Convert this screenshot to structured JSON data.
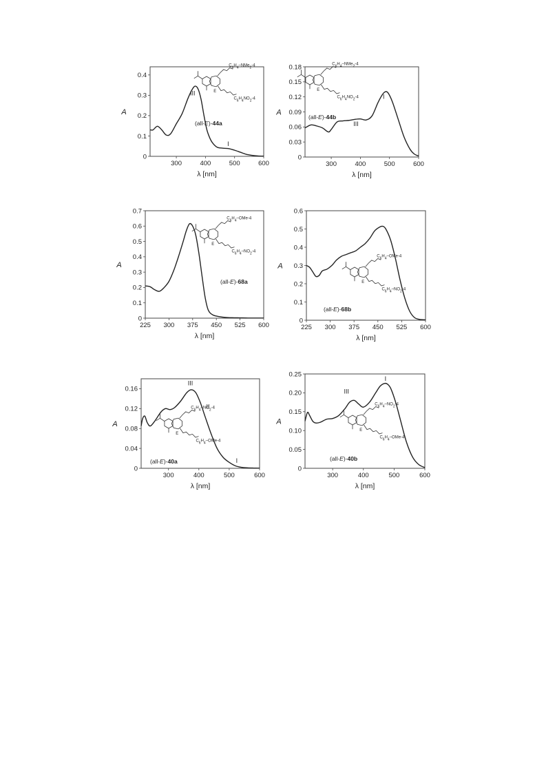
{
  "chart_data": [
    {
      "id": "44a",
      "type": "line",
      "xlabel": "λ [nm]",
      "ylabel": "A",
      "xlim": [
        210,
        600
      ],
      "ylim": [
        0,
        0.44
      ],
      "xticks": [
        300,
        400,
        500,
        600
      ],
      "xtick_labels": [
        "300",
        "400",
        "500",
        "600"
      ],
      "yticks": [
        0,
        0.1,
        0.2,
        0.3,
        0.4
      ],
      "ytick_labels": [
        "0",
        "0.1",
        "0.2",
        "0.3",
        "0.4"
      ],
      "caption_prefix": "(all-",
      "caption_italic": "E",
      "caption_mid": ")-",
      "caption_bold": "44a",
      "substituent_top": "C6H4–NMe2-4",
      "substituent_bottom": "C6H4NO2-4",
      "ring_label": "E",
      "annotations": [
        {
          "text": "III",
          "x": 356,
          "y": 0.3
        },
        {
          "text": "I",
          "x": 478,
          "y": 0.05
        }
      ],
      "series": [
        {
          "x": [
            210,
            220,
            235,
            250,
            265,
            280,
            300,
            320,
            340,
            355,
            365,
            375,
            385,
            395,
            405,
            415,
            425,
            440,
            460,
            480,
            500,
            520,
            540,
            560,
            580,
            600
          ],
          "y": [
            0.13,
            0.13,
            0.148,
            0.13,
            0.105,
            0.11,
            0.16,
            0.21,
            0.285,
            0.33,
            0.345,
            0.33,
            0.28,
            0.2,
            0.13,
            0.09,
            0.065,
            0.045,
            0.04,
            0.038,
            0.03,
            0.02,
            0.01,
            0.005,
            0.002,
            0.001
          ]
        }
      ]
    },
    {
      "id": "44b",
      "type": "line",
      "xlabel": "λ [nm]",
      "ylabel": "A",
      "xlim": [
        210,
        600
      ],
      "ylim": [
        0,
        0.18
      ],
      "xticks": [
        300,
        400,
        500,
        600
      ],
      "xtick_labels": [
        "300",
        "400",
        "500",
        "600"
      ],
      "yticks": [
        0,
        0.03,
        0.06,
        0.09,
        0.12,
        0.15,
        0.18
      ],
      "ytick_labels": [
        "0",
        "0.03",
        "0.06",
        "0.09",
        "0.12",
        "0.15",
        "0.18"
      ],
      "caption_prefix": "(all-",
      "caption_italic": "E",
      "caption_mid": ")-",
      "caption_bold": "44b",
      "substituent_top": "C6H4–NMe2-4",
      "substituent_bottom": "C6H4NO2-4",
      "ring_label": "E",
      "annotations": [
        {
          "text": "I",
          "x": 480,
          "y": 0.116
        },
        {
          "text": "III",
          "x": 385,
          "y": 0.062
        }
      ],
      "series": [
        {
          "x": [
            210,
            230,
            250,
            270,
            290,
            300,
            320,
            340,
            360,
            380,
            400,
            420,
            440,
            460,
            475,
            485,
            495,
            510,
            530,
            550,
            570,
            585,
            600
          ],
          "y": [
            0.058,
            0.064,
            0.062,
            0.058,
            0.05,
            0.055,
            0.07,
            0.072,
            0.073,
            0.075,
            0.076,
            0.074,
            0.082,
            0.108,
            0.124,
            0.13,
            0.128,
            0.11,
            0.075,
            0.04,
            0.016,
            0.006,
            0.002
          ]
        }
      ]
    },
    {
      "id": "68a",
      "type": "line",
      "xlabel": "λ [nm]",
      "ylabel": "A",
      "xlim": [
        225,
        600
      ],
      "ylim": [
        0,
        0.7
      ],
      "xticks": [
        225,
        300,
        375,
        450,
        525,
        600
      ],
      "xtick_labels": [
        "225",
        "300",
        "375",
        "450",
        "525",
        "600"
      ],
      "yticks": [
        0,
        0.1,
        0.2,
        0.3,
        0.4,
        0.5,
        0.6,
        0.7
      ],
      "ytick_labels": [
        "0",
        "0.1",
        "0.2",
        "0.3",
        "0.4",
        "0.5",
        "0.6",
        "0.7"
      ],
      "caption_prefix": "(all-",
      "caption_italic": "E",
      "caption_mid": ")-",
      "caption_bold": "68a",
      "substituent_top": "C6H4–OMe-4",
      "substituent_bottom": "C6H4–NO2-4",
      "ring_label": "E",
      "annotations": [],
      "series": [
        {
          "x": [
            225,
            240,
            255,
            270,
            285,
            300,
            315,
            330,
            345,
            355,
            365,
            375,
            385,
            395,
            405,
            415,
            425,
            440,
            460,
            480,
            500,
            525,
            550,
            575,
            600
          ],
          "y": [
            0.21,
            0.205,
            0.185,
            0.175,
            0.2,
            0.24,
            0.31,
            0.4,
            0.5,
            0.57,
            0.615,
            0.6,
            0.54,
            0.42,
            0.27,
            0.13,
            0.05,
            0.02,
            0.01,
            0.005,
            0.003,
            0.002,
            0.001,
            0.001,
            0.001
          ]
        }
      ]
    },
    {
      "id": "68b",
      "type": "line",
      "xlabel": "λ [nm]",
      "ylabel": "A",
      "xlim": [
        225,
        600
      ],
      "ylim": [
        0,
        0.6
      ],
      "xticks": [
        225,
        300,
        375,
        450,
        525,
        600
      ],
      "xtick_labels": [
        "225",
        "300",
        "375",
        "450",
        "525",
        "600"
      ],
      "yticks": [
        0,
        0.1,
        0.2,
        0.3,
        0.4,
        0.5,
        0.6
      ],
      "ytick_labels": [
        "0",
        "0.1",
        "0.2",
        "0.3",
        "0.4",
        "0.5",
        "0.6"
      ],
      "caption_prefix": "(all-",
      "caption_italic": "E",
      "caption_mid": ")-",
      "caption_bold": "68b",
      "substituent_top": "C6H4–OMe-4",
      "substituent_bottom": "C6H4–NO2-4",
      "ring_label": "E",
      "annotations": [],
      "series": [
        {
          "x": [
            225,
            235,
            245,
            255,
            265,
            275,
            290,
            305,
            320,
            335,
            350,
            365,
            380,
            395,
            410,
            425,
            440,
            455,
            465,
            475,
            490,
            505,
            520,
            535,
            550,
            565,
            580,
            600
          ],
          "y": [
            0.3,
            0.29,
            0.265,
            0.24,
            0.245,
            0.27,
            0.28,
            0.3,
            0.33,
            0.35,
            0.36,
            0.37,
            0.38,
            0.4,
            0.42,
            0.45,
            0.49,
            0.51,
            0.515,
            0.5,
            0.44,
            0.34,
            0.22,
            0.12,
            0.05,
            0.015,
            0.005,
            0.002
          ]
        }
      ]
    },
    {
      "id": "40a",
      "type": "line",
      "xlabel": "λ [nm]",
      "ylabel": "A",
      "xlim": [
        210,
        600
      ],
      "ylim": [
        0,
        0.18
      ],
      "xticks": [
        300,
        400,
        500,
        600
      ],
      "xtick_labels": [
        "300",
        "400",
        "500",
        "600"
      ],
      "yticks": [
        0,
        0.04,
        0.08,
        0.12,
        0.16
      ],
      "ytick_labels": [
        "0",
        "0.04",
        "0.08",
        "0.12",
        "0.16"
      ],
      "caption_prefix": "(all-",
      "caption_italic": "E",
      "caption_mid": ")-",
      "caption_bold": "40a",
      "substituent_top": "C6H4–NO2-4",
      "substituent_bottom": "C6H4–OMe-4",
      "ring_label": "E",
      "annotations": [
        {
          "text": "III",
          "x": 372,
          "y": 0.167
        },
        {
          "text": "II",
          "x": 430,
          "y": 0.12
        },
        {
          "text": "I",
          "x": 525,
          "y": 0.011
        }
      ],
      "series": [
        {
          "x": [
            210,
            215,
            222,
            230,
            240,
            255,
            275,
            290,
            305,
            320,
            340,
            360,
            375,
            390,
            405,
            420,
            440,
            460,
            480,
            500,
            520,
            540,
            560,
            580,
            600
          ],
          "y": [
            0.085,
            0.1,
            0.105,
            0.092,
            0.085,
            0.095,
            0.113,
            0.12,
            0.118,
            0.122,
            0.135,
            0.152,
            0.158,
            0.152,
            0.132,
            0.105,
            0.07,
            0.04,
            0.022,
            0.012,
            0.005,
            0.002,
            0.001,
            0.0005,
            0.0002
          ]
        }
      ]
    },
    {
      "id": "40b",
      "type": "line",
      "xlabel": "λ [nm]",
      "ylabel": "A",
      "xlim": [
        210,
        600
      ],
      "ylim": [
        0,
        0.25
      ],
      "xticks": [
        300,
        400,
        500,
        600
      ],
      "xtick_labels": [
        "300",
        "400",
        "500",
        "600"
      ],
      "yticks": [
        0,
        0.05,
        0.1,
        0.15,
        0.2,
        0.25
      ],
      "ytick_labels": [
        "0",
        "0.05",
        "0.10",
        "0.15",
        "0.20",
        "0.25"
      ],
      "caption_prefix": "(all-",
      "caption_italic": "E",
      "caption_mid": ")-",
      "caption_bold": "40b",
      "substituent_top": "C6H4–NO2-4",
      "substituent_bottom": "C6H4–OMe-4",
      "ring_label": "E",
      "annotations": [
        {
          "text": "III",
          "x": 345,
          "y": 0.198
        },
        {
          "text": "I",
          "x": 472,
          "y": 0.232
        }
      ],
      "series": [
        {
          "x": [
            210,
            218,
            225,
            235,
            245,
            260,
            280,
            300,
            320,
            340,
            355,
            370,
            385,
            400,
            420,
            440,
            455,
            470,
            480,
            490,
            505,
            520,
            540,
            560,
            580,
            600
          ],
          "y": [
            0.125,
            0.148,
            0.14,
            0.125,
            0.12,
            0.122,
            0.13,
            0.132,
            0.14,
            0.158,
            0.175,
            0.18,
            0.17,
            0.162,
            0.175,
            0.2,
            0.218,
            0.225,
            0.222,
            0.21,
            0.175,
            0.13,
            0.07,
            0.03,
            0.01,
            0.002
          ]
        }
      ]
    }
  ]
}
